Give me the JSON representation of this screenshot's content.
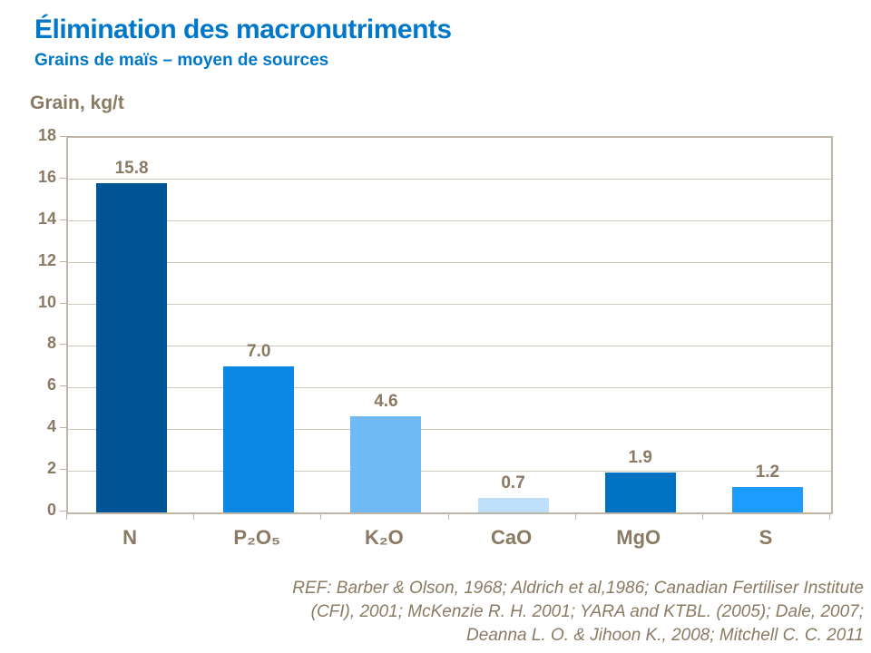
{
  "header": {
    "title": "Élimination des macronutriments",
    "subtitle": "Grains de maïs – moyen de sources"
  },
  "chart_data": {
    "type": "bar",
    "title": "Élimination des macronutriments",
    "subtitle": "Grains de maïs – moyen de sources",
    "ylabel": "Grain, kg/t",
    "xlabel": "",
    "categories": [
      "N",
      "P₂O₅",
      "K₂O",
      "CaO",
      "MgO",
      "S"
    ],
    "values": [
      15.8,
      7.0,
      4.6,
      0.7,
      1.9,
      1.2
    ],
    "value_labels": [
      "15.8",
      "7.0",
      "4.6",
      "0.7",
      "1.9",
      "1.2"
    ],
    "bar_colors": [
      "#005596",
      "#0A86E4",
      "#6FB9F5",
      "#BEE0FB",
      "#0072C2",
      "#1C9CFE"
    ],
    "ylim": [
      0,
      18
    ],
    "ytick_step": 2,
    "grid": true,
    "legend": false
  },
  "footer": {
    "ref_lines": [
      "REF: Barber & Olson, 1968; Aldrich et al,1986; Canadian Fertiliser Institute",
      "(CFI), 2001; McKenzie R. H. 2001; YARA and KTBL. (2005); Dale, 2007;",
      "Deanna L. O. & Jihoon K.,  2008; Mitchell C. C. 2011"
    ]
  },
  "colors": {
    "accent_blue": "#0077C8",
    "text_brown": "#8A7A63",
    "axis_border": "#BFB5A7",
    "gridline": "#CFC8BC"
  }
}
